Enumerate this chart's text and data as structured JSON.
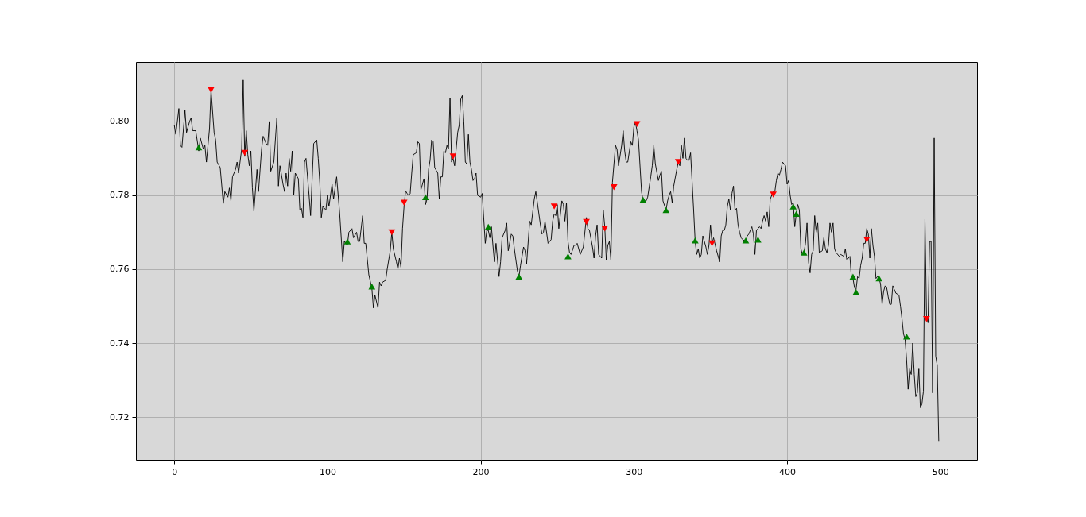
{
  "chart_data": {
    "type": "line",
    "xlim": [
      -25,
      524
    ],
    "ylim": [
      0.7084,
      0.8161
    ],
    "xticks": [
      0,
      100,
      200,
      300,
      400,
      500
    ],
    "yticks": [
      0.72,
      0.74,
      0.76,
      0.78,
      {
        "value": 0.8,
        "label": "0.80"
      }
    ],
    "grid": true,
    "series": [
      {
        "color": "#000000",
        "marker": "none",
        "x": [
          0,
          1,
          3,
          4,
          5,
          7,
          8,
          10,
          11,
          12,
          14,
          16,
          17,
          19,
          20,
          21,
          23,
          24,
          26,
          27,
          28,
          30,
          32,
          33,
          35,
          36,
          37,
          38,
          40,
          41,
          42,
          44,
          45,
          46,
          47,
          48,
          49,
          50,
          51,
          52,
          54,
          55,
          57,
          58,
          60,
          61,
          62,
          63,
          65,
          67,
          68,
          69,
          71,
          72,
          73,
          74,
          75,
          76,
          77,
          78,
          79,
          81,
          82,
          83,
          84,
          85,
          86,
          88,
          89,
          91,
          93,
          94,
          95,
          96,
          97,
          99,
          100,
          101,
          103,
          104,
          106,
          107,
          108,
          110,
          111,
          113,
          114,
          116,
          117,
          119,
          120,
          121,
          123,
          124,
          125,
          127,
          129,
          130,
          131,
          133,
          134,
          135,
          136,
          138,
          139,
          141,
          142,
          143,
          145,
          146,
          147,
          148,
          149,
          150,
          151,
          152,
          153,
          154,
          155,
          156,
          158,
          159,
          160,
          161,
          163,
          164,
          165,
          166,
          167,
          168,
          169,
          170,
          172,
          173,
          174,
          175,
          176,
          177,
          178,
          179,
          180,
          181,
          182,
          183,
          185,
          186,
          187,
          188,
          189,
          190,
          191,
          192,
          193,
          194,
          195,
          196,
          197,
          198,
          200,
          201,
          203,
          204,
          205,
          206,
          207,
          208,
          209,
          210,
          212,
          213,
          214,
          216,
          217,
          218,
          220,
          221,
          222,
          224,
          225,
          226,
          228,
          229,
          230,
          232,
          233,
          235,
          236,
          237,
          239,
          240,
          241,
          242,
          244,
          246,
          247,
          248,
          249,
          250,
          251,
          253,
          254,
          255,
          256,
          257,
          258,
          259,
          261,
          262,
          263,
          265,
          267,
          269,
          270,
          271,
          273,
          274,
          275,
          276,
          277,
          278,
          279,
          280,
          281,
          282,
          283,
          284,
          285,
          286,
          288,
          289,
          290,
          292,
          293,
          294,
          295,
          296,
          298,
          299,
          300,
          301,
          302,
          303,
          305,
          306,
          307,
          308,
          309,
          311,
          312,
          313,
          314,
          316,
          317,
          318,
          319,
          321,
          322,
          323,
          324,
          325,
          326,
          328,
          329,
          330,
          331,
          332,
          333,
          334,
          335,
          336,
          337,
          339,
          340,
          341,
          342,
          343,
          344,
          345,
          347,
          348,
          349,
          350,
          351,
          352,
          354,
          356,
          357,
          358,
          359,
          360,
          361,
          362,
          363,
          364,
          365,
          366,
          367,
          368,
          369,
          370,
          371,
          373,
          374,
          375,
          377,
          378,
          379,
          380,
          382,
          383,
          384,
          385,
          386,
          387,
          388,
          389,
          391,
          392,
          393,
          394,
          395,
          396,
          397,
          398,
          399,
          400,
          401,
          402,
          403,
          404,
          405,
          406,
          407,
          408,
          409,
          410,
          411,
          412,
          413,
          414,
          415,
          416,
          417,
          418,
          419,
          420,
          421,
          423,
          424,
          425,
          426,
          427,
          428,
          429,
          430,
          431,
          432,
          434,
          435,
          437,
          438,
          439,
          441,
          442,
          443,
          444,
          445,
          446,
          447,
          448,
          449,
          450,
          451,
          452,
          453,
          454,
          455,
          456,
          457,
          458,
          459,
          460,
          461,
          462,
          463,
          464,
          465,
          466,
          467,
          468,
          469,
          470,
          471,
          473,
          474,
          475,
          476,
          477,
          478,
          479,
          480,
          481,
          482,
          483,
          484,
          485,
          486,
          487,
          488,
          489,
          490,
          491,
          492,
          493,
          494,
          495,
          496,
          497,
          498,
          499
        ],
        "values": [
          0.799,
          0.7965,
          0.8035,
          0.7935,
          0.793,
          0.803,
          0.797,
          0.8,
          0.801,
          0.7975,
          0.7975,
          0.792,
          0.7955,
          0.7925,
          0.7935,
          0.789,
          0.798,
          0.8085,
          0.797,
          0.795,
          0.789,
          0.7875,
          0.7778,
          0.781,
          0.7795,
          0.782,
          0.7785,
          0.785,
          0.787,
          0.789,
          0.786,
          0.7925,
          0.8112,
          0.7905,
          0.7975,
          0.791,
          0.788,
          0.792,
          0.782,
          0.7757,
          0.787,
          0.781,
          0.7925,
          0.796,
          0.794,
          0.7935,
          0.8,
          0.7865,
          0.789,
          0.801,
          0.7825,
          0.788,
          0.783,
          0.781,
          0.786,
          0.7825,
          0.79,
          0.7865,
          0.792,
          0.78,
          0.786,
          0.7845,
          0.776,
          0.7765,
          0.774,
          0.789,
          0.79,
          0.78,
          0.7745,
          0.794,
          0.795,
          0.79,
          0.7835,
          0.774,
          0.777,
          0.776,
          0.78,
          0.777,
          0.783,
          0.779,
          0.785,
          0.78,
          0.775,
          0.762,
          0.7675,
          0.7665,
          0.77,
          0.771,
          0.7685,
          0.77,
          0.7675,
          0.7675,
          0.7745,
          0.767,
          0.767,
          0.7585,
          0.7548,
          0.7495,
          0.753,
          0.7495,
          0.7565,
          0.7555,
          0.7565,
          0.757,
          0.76,
          0.765,
          0.77,
          0.7655,
          0.762,
          0.76,
          0.763,
          0.7605,
          0.771,
          0.777,
          0.7812,
          0.7805,
          0.78,
          0.7805,
          0.786,
          0.791,
          0.7915,
          0.7945,
          0.794,
          0.7815,
          0.7845,
          0.7775,
          0.779,
          0.787,
          0.7895,
          0.795,
          0.7945,
          0.7875,
          0.786,
          0.779,
          0.785,
          0.785,
          0.792,
          0.7915,
          0.7935,
          0.7925,
          0.8063,
          0.789,
          0.79,
          0.788,
          0.797,
          0.799,
          0.806,
          0.807,
          0.8,
          0.789,
          0.7885,
          0.7965,
          0.789,
          0.787,
          0.784,
          0.7845,
          0.786,
          0.78,
          0.7795,
          0.7805,
          0.767,
          0.7705,
          0.7705,
          0.7685,
          0.7715,
          0.7665,
          0.762,
          0.767,
          0.758,
          0.762,
          0.7685,
          0.7705,
          0.7725,
          0.765,
          0.7695,
          0.769,
          0.7655,
          0.7595,
          0.758,
          0.761,
          0.766,
          0.765,
          0.7615,
          0.773,
          0.772,
          0.779,
          0.781,
          0.778,
          0.772,
          0.7695,
          0.77,
          0.773,
          0.767,
          0.768,
          0.773,
          0.775,
          0.7745,
          0.7775,
          0.771,
          0.7785,
          0.7775,
          0.773,
          0.778,
          0.7675,
          0.7645,
          0.764,
          0.7665,
          0.7665,
          0.767,
          0.764,
          0.766,
          0.774,
          0.771,
          0.7705,
          0.766,
          0.763,
          0.769,
          0.772,
          0.764,
          0.7635,
          0.763,
          0.776,
          0.7715,
          0.7625,
          0.7665,
          0.7675,
          0.7625,
          0.7835,
          0.7935,
          0.7925,
          0.788,
          0.7935,
          0.7975,
          0.792,
          0.789,
          0.789,
          0.7945,
          0.7935,
          0.7985,
          0.7998,
          0.7975,
          0.795,
          0.781,
          0.7785,
          0.7785,
          0.7785,
          0.7795,
          0.785,
          0.788,
          0.7935,
          0.7885,
          0.784,
          0.7855,
          0.7865,
          0.7785,
          0.776,
          0.7785,
          0.78,
          0.781,
          0.778,
          0.7825,
          0.787,
          0.789,
          0.788,
          0.7935,
          0.79,
          0.7955,
          0.79,
          0.7895,
          0.7895,
          0.7915,
          0.776,
          0.7675,
          0.764,
          0.7655,
          0.763,
          0.764,
          0.769,
          0.766,
          0.764,
          0.7665,
          0.772,
          0.767,
          0.7685,
          0.765,
          0.762,
          0.769,
          0.7705,
          0.7705,
          0.772,
          0.777,
          0.779,
          0.776,
          0.7805,
          0.7825,
          0.776,
          0.7765,
          0.772,
          0.77,
          0.7685,
          0.768,
          0.7675,
          0.769,
          0.7695,
          0.7715,
          0.7695,
          0.764,
          0.7705,
          0.7715,
          0.771,
          0.773,
          0.7745,
          0.773,
          0.7755,
          0.7715,
          0.779,
          0.781,
          0.781,
          0.784,
          0.786,
          0.7855,
          0.787,
          0.789,
          0.7885,
          0.788,
          0.783,
          0.784,
          0.78,
          0.7775,
          0.778,
          0.7715,
          0.775,
          0.7775,
          0.776,
          0.7655,
          0.764,
          0.7645,
          0.767,
          0.7725,
          0.762,
          0.759,
          0.764,
          0.765,
          0.7745,
          0.77,
          0.7725,
          0.7645,
          0.765,
          0.7685,
          0.7655,
          0.7645,
          0.7665,
          0.7725,
          0.77,
          0.7725,
          0.7655,
          0.7645,
          0.7635,
          0.764,
          0.7635,
          0.7655,
          0.7625,
          0.7635,
          0.7575,
          0.7575,
          0.755,
          0.7545,
          0.758,
          0.7575,
          0.761,
          0.763,
          0.767,
          0.767,
          0.771,
          0.7695,
          0.763,
          0.771,
          0.7665,
          0.7635,
          0.7575,
          0.758,
          0.7575,
          0.756,
          0.7505,
          0.754,
          0.7555,
          0.755,
          0.7525,
          0.7505,
          0.7505,
          0.7555,
          0.7545,
          0.7535,
          0.753,
          0.75,
          0.7465,
          0.7425,
          0.741,
          0.7355,
          0.7275,
          0.733,
          0.7315,
          0.74,
          0.7315,
          0.7255,
          0.7265,
          0.733,
          0.7225,
          0.7235,
          0.727,
          0.7735,
          0.7475,
          0.7455,
          0.7675,
          0.7675,
          0.7265,
          0.7955,
          0.7365,
          0.734,
          0.7135
        ]
      },
      {
        "type": "scatter",
        "color": "#008000",
        "marker": "triangle-up",
        "x": [
          16,
          113,
          129,
          164,
          205,
          225,
          257,
          306,
          321,
          340,
          373,
          381,
          404,
          406,
          411,
          443,
          445,
          460,
          478
        ],
        "values": [
          0.793,
          0.7675,
          0.7553,
          0.7795,
          0.7715,
          0.758,
          0.7635,
          0.7788,
          0.776,
          0.7678,
          0.7678,
          0.768,
          0.777,
          0.775,
          0.7645,
          0.758,
          0.7538,
          0.7575,
          0.7418
        ]
      },
      {
        "type": "scatter",
        "color": "#ff0000",
        "marker": "triangle-down",
        "x": [
          24,
          46,
          142,
          150,
          182,
          248,
          269,
          281,
          287,
          302,
          329,
          351,
          391,
          452,
          491
        ],
        "values": [
          0.8085,
          0.7915,
          0.77,
          0.778,
          0.7905,
          0.777,
          0.7728,
          0.771,
          0.7822,
          0.7993,
          0.789,
          0.767,
          0.7802,
          0.768,
          0.7465
        ]
      }
    ]
  }
}
